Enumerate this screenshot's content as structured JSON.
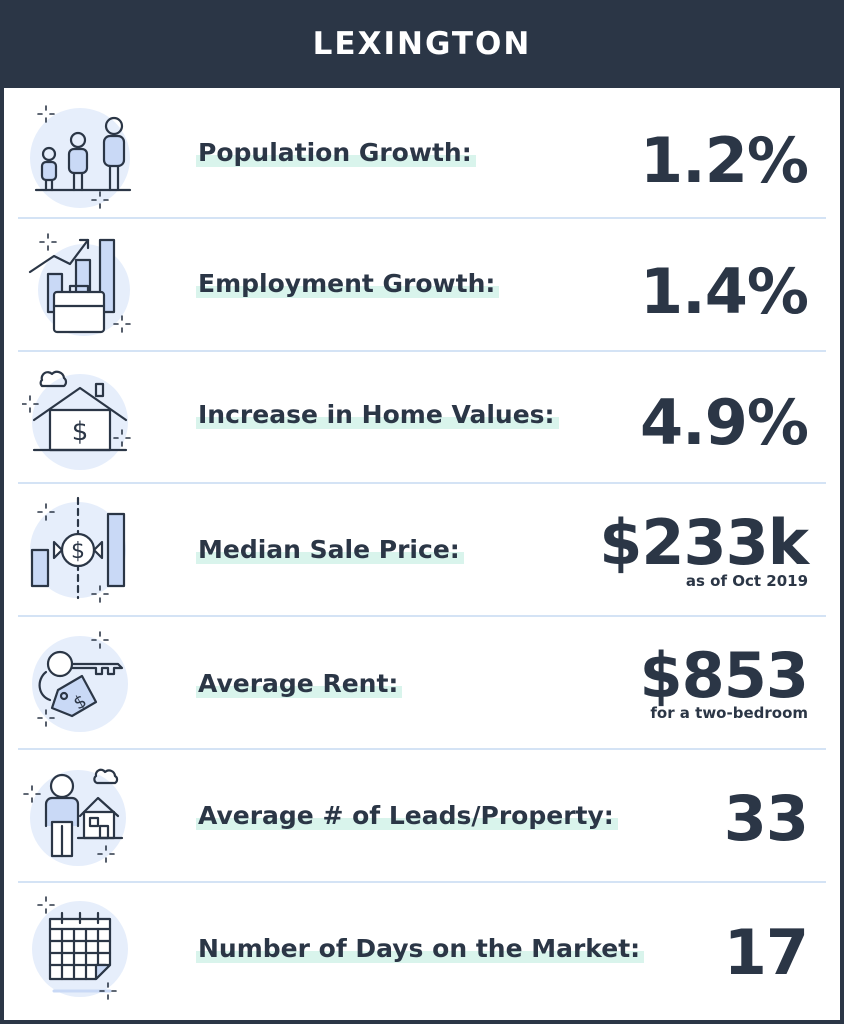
{
  "title": "LEXINGTON",
  "colors": {
    "header": "#2b3646",
    "text": "#2b3646",
    "highlight": "#d9f4ec",
    "divider": "#d4e3f5",
    "icon_bg": "#e6eefb",
    "icon_fill": "#c9d9f6"
  },
  "stats": [
    {
      "icon": "family-icon",
      "label": "Population Growth:",
      "value": "1.2%",
      "note": ""
    },
    {
      "icon": "briefcase-chart-icon",
      "label": "Employment Growth:",
      "value": "1.4%",
      "note": ""
    },
    {
      "icon": "house-dollar-icon",
      "label": "Increase in Home Values:",
      "value": "4.9%",
      "note": ""
    },
    {
      "icon": "bar-dollar-icon",
      "label": "Median Sale Price:",
      "value": "$233k",
      "note": "as of Oct 2019"
    },
    {
      "icon": "key-tag-icon",
      "label": "Average Rent:",
      "value": "$853",
      "note": "for a two-bedroom"
    },
    {
      "icon": "person-house-icon",
      "label": "Average # of Leads/Property:",
      "value": "33",
      "note": ""
    },
    {
      "icon": "calendar-icon",
      "label": "Number of Days on the Market:",
      "value": "17",
      "note": ""
    }
  ]
}
